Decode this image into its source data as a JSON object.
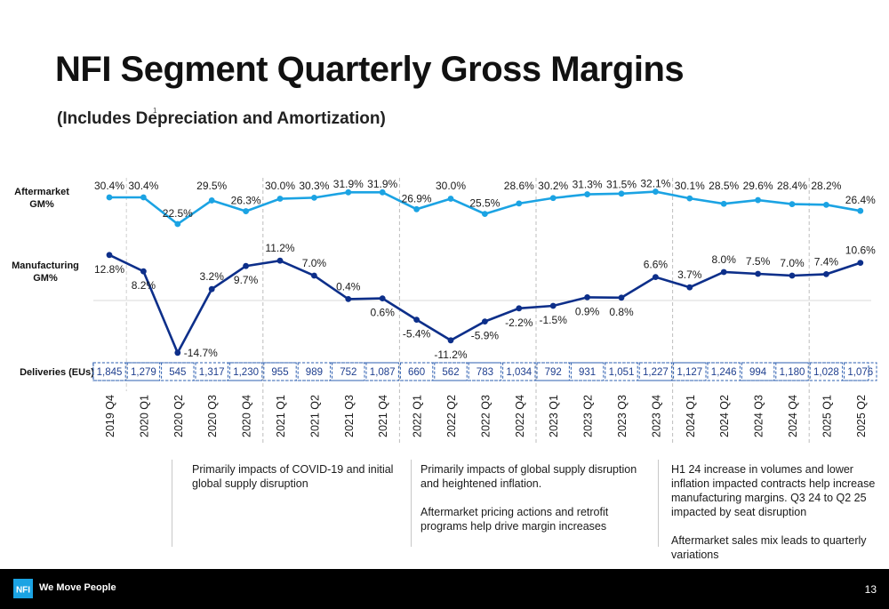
{
  "header": {
    "title": "NFI Segment Quarterly Gross Margins",
    "subtitle": "(Includes Depreciation and Amortization)",
    "footnote_mark": "1"
  },
  "chart_data": {
    "type": "line",
    "categories": [
      "2019 Q4",
      "2020 Q1",
      "2020 Q2",
      "2020 Q3",
      "2020 Q4",
      "2021 Q1",
      "2021 Q2",
      "2021 Q3",
      "2021 Q4",
      "2022 Q1",
      "2022 Q2",
      "2022 Q3",
      "2022 Q4",
      "2023 Q1",
      "2023 Q2",
      "2023 Q3",
      "2023 Q4",
      "2024 Q1",
      "2024 Q2",
      "2024 Q3",
      "2024 Q4",
      "2025 Q1",
      "2025 Q2"
    ],
    "series": [
      {
        "name": "Aftermarket GM%",
        "color": "#1ba3e3",
        "values": [
          30.4,
          30.4,
          22.5,
          29.5,
          26.3,
          30.0,
          30.3,
          31.9,
          31.9,
          26.9,
          30.0,
          25.5,
          28.6,
          30.2,
          31.3,
          31.5,
          32.1,
          30.1,
          28.5,
          29.6,
          28.4,
          28.2,
          26.4
        ],
        "labels": [
          "30.4%",
          "30.4%",
          "22.5%",
          "29.5%",
          "26.3%",
          "30.0%",
          "30.3%",
          "31.9%",
          "31.9%",
          "26.9%",
          "30.0%",
          "25.5%",
          "28.6%",
          "30.2%",
          "31.3%",
          "31.5%",
          "32.1%",
          "30.1%",
          "28.5%",
          "29.6%",
          "28.4%",
          "28.2%",
          "26.4%"
        ]
      },
      {
        "name": "Manufacturing GM%",
        "color": "#0d2f8a",
        "values": [
          12.8,
          8.2,
          -14.7,
          3.2,
          9.7,
          11.2,
          7.0,
          0.4,
          0.6,
          -5.4,
          -11.2,
          -5.9,
          -2.2,
          -1.5,
          0.9,
          0.8,
          6.6,
          3.7,
          8.0,
          7.5,
          7.0,
          7.4,
          10.6
        ],
        "labels": [
          "12.8%",
          "8.2%",
          "-14.7%",
          "3.2%",
          "9.7%",
          "11.2%",
          "7.0%",
          "0.4%",
          "0.6%",
          "-5.4%",
          "-11.2%",
          "-5.9%",
          "-2.2%",
          "-1.5%",
          "0.9%",
          "0.8%",
          "6.6%",
          "3.7%",
          "8.0%",
          "7.5%",
          "7.0%",
          "7.4%",
          "10.6%"
        ]
      }
    ],
    "deliveries": {
      "label": "Deliveries (EUs)",
      "values": [
        "1,845",
        "1,279",
        "545",
        "1,317",
        "1,230",
        "955",
        "989",
        "752",
        "1,087",
        "660",
        "562",
        "783",
        "1,034",
        "792",
        "931",
        "1,051",
        "1,227",
        "1,127",
        "1,246",
        "994",
        "1,180",
        "1,028",
        "1,076"
      ]
    },
    "row_labels": {
      "aftermarket": [
        "Aftermarket",
        "GM%"
      ],
      "manufacturing": [
        "Manufacturing",
        "GM%"
      ]
    },
    "period_dividers_after": [
      "2020 Q4",
      "2021 Q4",
      "2022 Q4",
      "2023 Q4",
      "2024 Q4"
    ]
  },
  "annotations": [
    {
      "paragraphs": [
        "Primarily impacts of COVID-19 and initial global supply disruption"
      ]
    },
    {
      "paragraphs": [
        "Primarily impacts of global supply disruption and heightened inflation.",
        "Aftermarket pricing actions and retrofit programs help drive margin increases"
      ]
    },
    {
      "paragraphs": [
        "H1 24 increase in volumes and lower inflation impacted contracts help increase manufacturing margins. Q3 24 to Q2 25 impacted by seat disruption",
        "Aftermarket sales mix leads to quarterly variations"
      ]
    }
  ],
  "footer": {
    "logo_text": "NFI",
    "tagline": "We Move People",
    "page_number": "13",
    "background": "#000000"
  }
}
